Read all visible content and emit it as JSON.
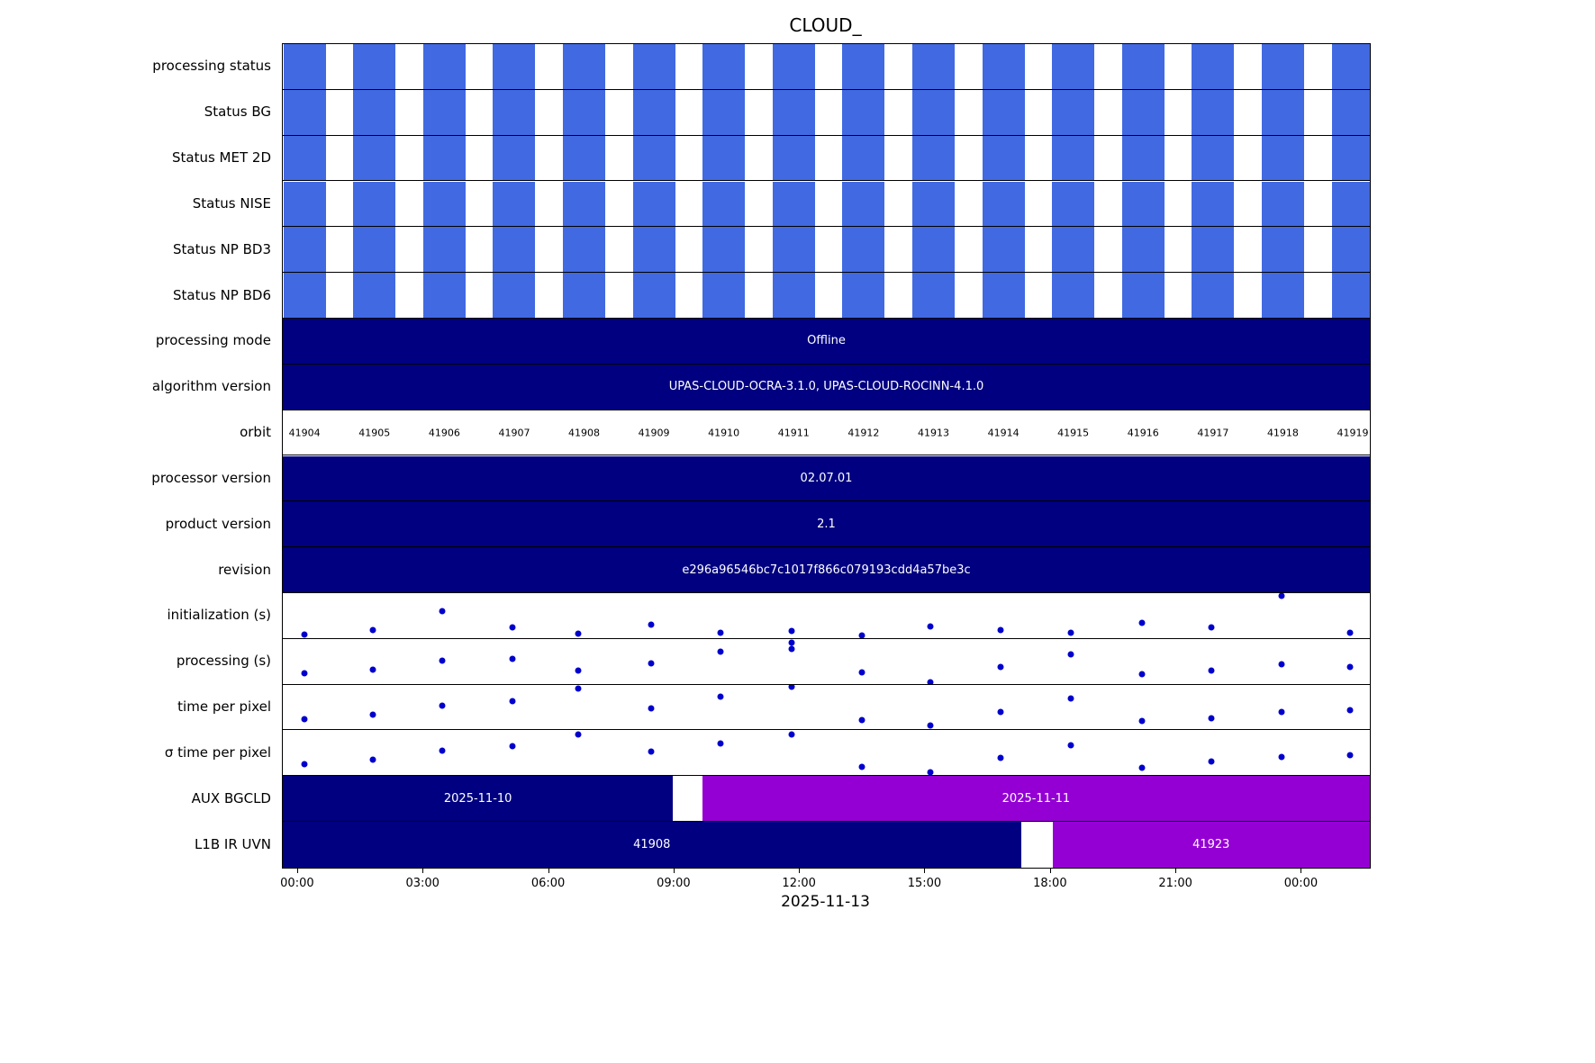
{
  "title": "CLOUD_",
  "xlabel": "2025-11-13",
  "colors": {
    "bar_blue": "#4169E1",
    "bar_navy": "#000080",
    "bar_purple": "#9400D3",
    "dot_blue": "#0000CD",
    "background": "#FFFFFF",
    "border": "#000000"
  },
  "chart_data": {
    "type": "timeline",
    "orbit_centers": [
      0.02,
      0.0843,
      0.1486,
      0.2129,
      0.2771,
      0.3414,
      0.4057,
      0.47,
      0.5343,
      0.5986,
      0.6629,
      0.7271,
      0.7914,
      0.8557,
      0.92,
      0.9843
    ],
    "status_bar_width": 0.039,
    "x_ticks": [
      {
        "label": "00:00",
        "pos": 0.014
      },
      {
        "label": "03:00",
        "pos": 0.1294
      },
      {
        "label": "06:00",
        "pos": 0.2449
      },
      {
        "label": "09:00",
        "pos": 0.3603
      },
      {
        "label": "12:00",
        "pos": 0.4757
      },
      {
        "label": "15:00",
        "pos": 0.5911
      },
      {
        "label": "18:00",
        "pos": 0.7066
      },
      {
        "label": "21:00",
        "pos": 0.822
      },
      {
        "label": "00:00",
        "pos": 0.9374
      }
    ],
    "rows": [
      {
        "label": "processing status",
        "type": "status"
      },
      {
        "label": "Status BG",
        "type": "status"
      },
      {
        "label": "Status MET 2D",
        "type": "status"
      },
      {
        "label": "Status NISE",
        "type": "status"
      },
      {
        "label": "Status NP BD3",
        "type": "status"
      },
      {
        "label": "Status NP BD6",
        "type": "status"
      },
      {
        "label": "processing mode",
        "type": "full_bar",
        "text": "Offline",
        "color": "navy"
      },
      {
        "label": "algorithm version",
        "type": "full_bar",
        "text": "UPAS-CLOUD-OCRA-3.1.0, UPAS-CLOUD-ROCINN-4.1.0",
        "color": "navy"
      },
      {
        "label": "orbit",
        "type": "orbit",
        "values": [
          "41904",
          "41905",
          "41906",
          "41907",
          "41908",
          "41909",
          "41910",
          "41911",
          "41912",
          "41913",
          "41914",
          "41915",
          "41916",
          "41917",
          "41918",
          "41919"
        ]
      },
      {
        "label": "processor version",
        "type": "full_bar",
        "text": "02.07.01",
        "color": "navy"
      },
      {
        "label": "product version",
        "type": "full_bar",
        "text": "2.1",
        "color": "navy"
      },
      {
        "label": "revision",
        "type": "full_bar",
        "text": "e296a96546bc7c1017f866c079193cdd4a57be3c",
        "color": "navy"
      },
      {
        "label": "initialization (s)",
        "type": "scatter",
        "points": [
          [
            0.02,
            0.92
          ],
          [
            0.083,
            0.82
          ],
          [
            0.147,
            0.41
          ],
          [
            0.211,
            0.76
          ],
          [
            0.272,
            0.9
          ],
          [
            0.339,
            0.71
          ],
          [
            0.403,
            0.88
          ],
          [
            0.468,
            0.84
          ],
          [
            0.533,
            0.94
          ],
          [
            0.596,
            0.75
          ],
          [
            0.66,
            0.82
          ],
          [
            0.725,
            0.88
          ],
          [
            0.79,
            0.67
          ],
          [
            0.854,
            0.76
          ],
          [
            0.919,
            0.06
          ],
          [
            0.982,
            0.88
          ]
        ]
      },
      {
        "label": "processing (s)",
        "type": "scatter",
        "points": [
          [
            0.02,
            0.76
          ],
          [
            0.083,
            0.69
          ],
          [
            0.147,
            0.49
          ],
          [
            0.211,
            0.45
          ],
          [
            0.272,
            0.71
          ],
          [
            0.339,
            0.55
          ],
          [
            0.403,
            0.29
          ],
          [
            0.468,
            0.08
          ],
          [
            0.468,
            0.22
          ],
          [
            0.533,
            0.75
          ],
          [
            0.596,
            0.96
          ],
          [
            0.66,
            0.63
          ],
          [
            0.725,
            0.35
          ],
          [
            0.79,
            0.78
          ],
          [
            0.854,
            0.71
          ],
          [
            0.919,
            0.57
          ],
          [
            0.982,
            0.63
          ]
        ]
      },
      {
        "label": "time per pixel",
        "type": "scatter",
        "points": [
          [
            0.02,
            0.76
          ],
          [
            0.083,
            0.67
          ],
          [
            0.147,
            0.47
          ],
          [
            0.211,
            0.37
          ],
          [
            0.272,
            0.08
          ],
          [
            0.339,
            0.53
          ],
          [
            0.403,
            0.27
          ],
          [
            0.468,
            0.04
          ],
          [
            0.533,
            0.78
          ],
          [
            0.596,
            0.9
          ],
          [
            0.66,
            0.61
          ],
          [
            0.725,
            0.31
          ],
          [
            0.79,
            0.8
          ],
          [
            0.854,
            0.75
          ],
          [
            0.919,
            0.61
          ],
          [
            0.982,
            0.57
          ]
        ]
      },
      {
        "label": "σ time per pixel",
        "type": "scatter",
        "points": [
          [
            0.02,
            0.75
          ],
          [
            0.083,
            0.65
          ],
          [
            0.147,
            0.45
          ],
          [
            0.211,
            0.35
          ],
          [
            0.272,
            0.1
          ],
          [
            0.339,
            0.47
          ],
          [
            0.403,
            0.29
          ],
          [
            0.468,
            0.1
          ],
          [
            0.533,
            0.82
          ],
          [
            0.596,
            0.94
          ],
          [
            0.66,
            0.61
          ],
          [
            0.725,
            0.33
          ],
          [
            0.79,
            0.84
          ],
          [
            0.854,
            0.69
          ],
          [
            0.919,
            0.59
          ],
          [
            0.982,
            0.55
          ]
        ]
      },
      {
        "label": "AUX BGCLD",
        "type": "segments",
        "segments": [
          {
            "start": 0.0,
            "end": 0.359,
            "color": "navy",
            "text": "2025-11-10"
          },
          {
            "start": 0.386,
            "end": 1.0,
            "color": "purple",
            "text": "2025-11-11"
          }
        ]
      },
      {
        "label": "L1B IR UVN",
        "type": "segments",
        "segments": [
          {
            "start": 0.0,
            "end": 0.679,
            "color": "navy",
            "text": "41908"
          },
          {
            "start": 0.708,
            "end": 1.0,
            "color": "purple",
            "text": "41923"
          }
        ]
      }
    ]
  }
}
